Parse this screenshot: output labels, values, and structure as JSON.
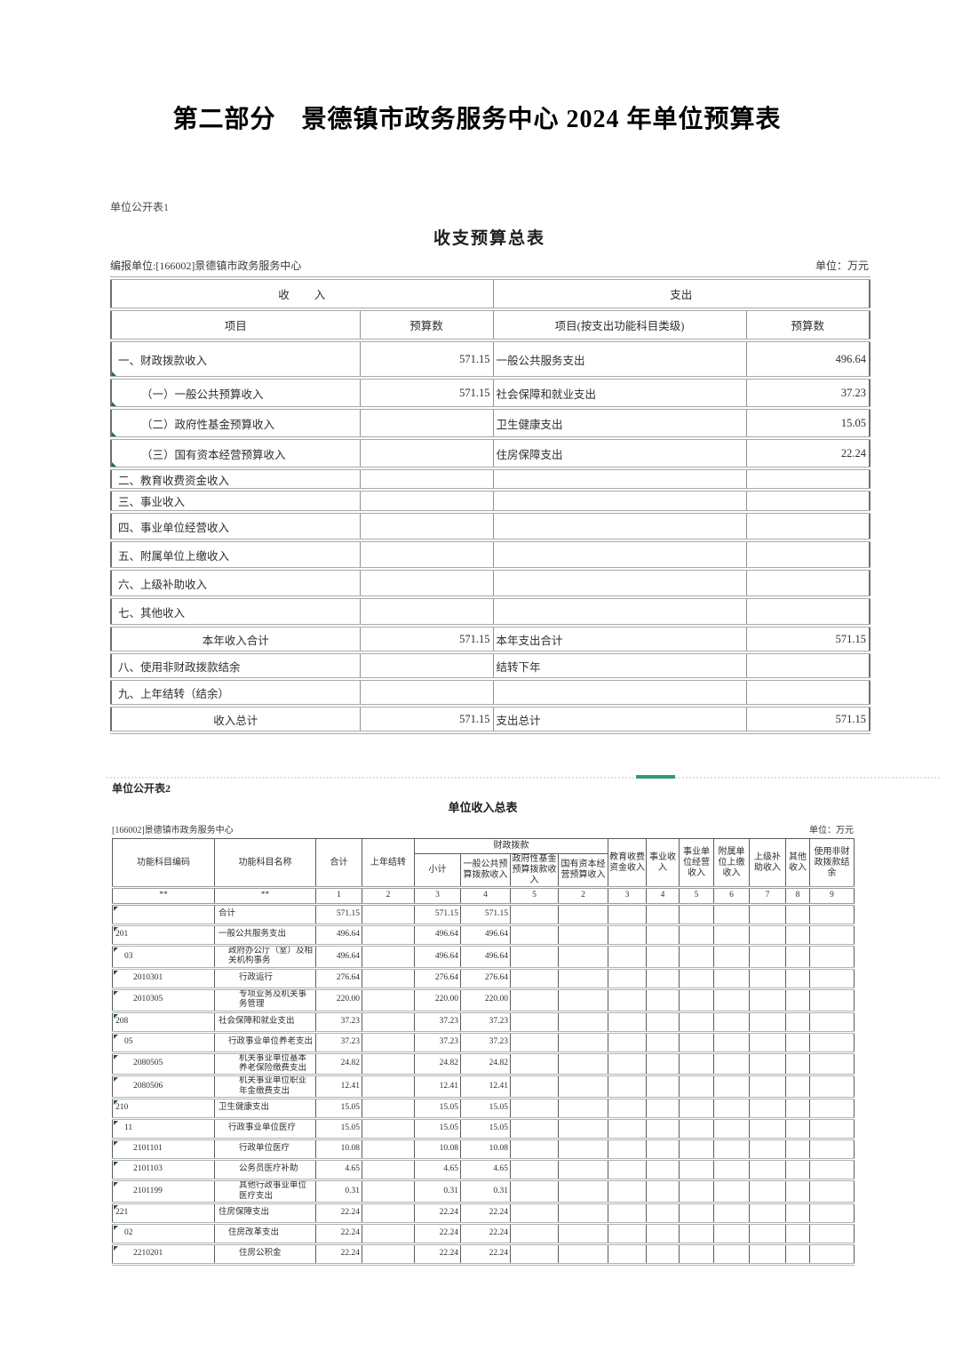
{
  "page_title": "第二部分　景德镇市政务服务中心 2024 年单位预算表",
  "table1": {
    "sheet_label": "单位公开表1",
    "title": "收支预算总表",
    "reporting_unit": "编报单位:[166002]景德镇市政务服务中心",
    "unit_note": "单位：万元",
    "header": {
      "income_group": "收　　入",
      "expense_group": "支出",
      "income_item": "项目",
      "income_budget": "预算数",
      "expense_item": "项目(按支出功能科目类级)",
      "expense_budget": "预算数"
    },
    "rows": [
      {
        "label": "一、财政拨款收入",
        "level": 0,
        "income": "571.15",
        "exp_label": "一般公共服务支出",
        "exp": "496.64"
      },
      {
        "label": "（一）一般公共预算收入",
        "level": 1,
        "income": "571.15",
        "exp_label": "社会保障和就业支出",
        "exp": "37.23"
      },
      {
        "label": "（二）政府性基金预算收入",
        "level": 1,
        "income": "",
        "exp_label": "卫生健康支出",
        "exp": "15.05"
      },
      {
        "label": "（三）国有资本经营预算收入",
        "level": 1,
        "income": "",
        "exp_label": "住房保障支出",
        "exp": "22.24"
      },
      {
        "label": "二、教育收费资金收入",
        "level": 0,
        "income": "",
        "exp_label": "",
        "exp": ""
      },
      {
        "label": "三、事业收入",
        "level": 0,
        "income": "",
        "exp_label": "",
        "exp": ""
      },
      {
        "label": "四、事业单位经营收入",
        "level": 0,
        "income": "",
        "exp_label": "",
        "exp": ""
      },
      {
        "label": "五、附属单位上缴收入",
        "level": 0,
        "income": "",
        "exp_label": "",
        "exp": ""
      },
      {
        "label": "六、上级补助收入",
        "level": 0,
        "income": "",
        "exp_label": "",
        "exp": ""
      },
      {
        "label": "七、其他收入",
        "level": 0,
        "income": "",
        "exp_label": "",
        "exp": ""
      },
      {
        "label": "本年收入合计",
        "center": true,
        "income": "571.15",
        "exp_label": "本年支出合计",
        "exp": "571.15"
      },
      {
        "label": "八、使用非财政拨款结余",
        "level": 0,
        "income": "",
        "exp_label": "结转下年",
        "exp": ""
      },
      {
        "label": "九、上年结转（结余）",
        "level": 0,
        "income": "",
        "exp_label": "",
        "exp": ""
      },
      {
        "label": "收入总计",
        "center": true,
        "income": "571.15",
        "exp_label": "支出总计",
        "exp": "571.15"
      }
    ]
  },
  "table2": {
    "sheet_label": "单位公开表2",
    "title": "单位收入总表",
    "reporting_unit": "[166002]景德镇市政务服务中心",
    "unit_note": "单位：万元",
    "group_header": "财政拨款",
    "headers": [
      "功能科目编码",
      "功能科目名称",
      "合计",
      "上年结转",
      "小计",
      "一般公共预算拨款收入",
      "政府性基金预算拨款收入",
      "国有资本经营预算收入",
      "教育收费资金收入",
      "事业收入",
      "事业单位经营收入",
      "附属单位上缴收入",
      "上级补助收入",
      "其他收入",
      "使用非财政拨款结余"
    ],
    "col_numbers": [
      "**",
      "**",
      "1",
      "2",
      "3",
      "4",
      "5",
      "2",
      "3",
      "4",
      "5",
      "6",
      "7",
      "8",
      "9"
    ],
    "rows": [
      {
        "code": "",
        "name": "合计",
        "level": 0,
        "total": "571.15",
        "subtotal": "571.15",
        "general": "571.15"
      },
      {
        "code": "201",
        "name": "一般公共服务支出",
        "level": 0,
        "total": "496.64",
        "subtotal": "496.64",
        "general": "496.64"
      },
      {
        "code": "03",
        "name": "政府办公厅（室）及相关机构事务",
        "level": 1,
        "total": "496.64",
        "subtotal": "496.64",
        "general": "496.64"
      },
      {
        "code": "2010301",
        "name": "行政运行",
        "level": 2,
        "total": "276.64",
        "subtotal": "276.64",
        "general": "276.64"
      },
      {
        "code": "2010305",
        "name": "专项业务及机关事务管理",
        "level": 2,
        "total": "220.00",
        "subtotal": "220.00",
        "general": "220.00"
      },
      {
        "code": "208",
        "name": "社会保障和就业支出",
        "level": 0,
        "total": "37.23",
        "subtotal": "37.23",
        "general": "37.23"
      },
      {
        "code": "05",
        "name": "行政事业单位养老支出",
        "level": 1,
        "total": "37.23",
        "subtotal": "37.23",
        "general": "37.23"
      },
      {
        "code": "2080505",
        "name": "机关事业单位基本养老保险缴费支出",
        "level": 2,
        "total": "24.82",
        "subtotal": "24.82",
        "general": "24.82"
      },
      {
        "code": "2080506",
        "name": "机关事业单位职业年金缴费支出",
        "level": 2,
        "total": "12.41",
        "subtotal": "12.41",
        "general": "12.41"
      },
      {
        "code": "210",
        "name": "卫生健康支出",
        "level": 0,
        "total": "15.05",
        "subtotal": "15.05",
        "general": "15.05"
      },
      {
        "code": "11",
        "name": "行政事业单位医疗",
        "level": 1,
        "total": "15.05",
        "subtotal": "15.05",
        "general": "15.05"
      },
      {
        "code": "2101101",
        "name": "行政单位医疗",
        "level": 2,
        "total": "10.08",
        "subtotal": "10.08",
        "general": "10.08"
      },
      {
        "code": "2101103",
        "name": "公务员医疗补助",
        "level": 2,
        "total": "4.65",
        "subtotal": "4.65",
        "general": "4.65"
      },
      {
        "code": "2101199",
        "name": "其他行政事业单位医疗支出",
        "level": 2,
        "total": "0.31",
        "subtotal": "0.31",
        "general": "0.31"
      },
      {
        "code": "221",
        "name": "住房保障支出",
        "level": 0,
        "total": "22.24",
        "subtotal": "22.24",
        "general": "22.24"
      },
      {
        "code": "02",
        "name": "住房改革支出",
        "level": 1,
        "total": "22.24",
        "subtotal": "22.24",
        "general": "22.24"
      },
      {
        "code": "2210201",
        "name": "住房公积金",
        "level": 2,
        "total": "22.24",
        "subtotal": "22.24",
        "general": "22.24"
      }
    ]
  }
}
